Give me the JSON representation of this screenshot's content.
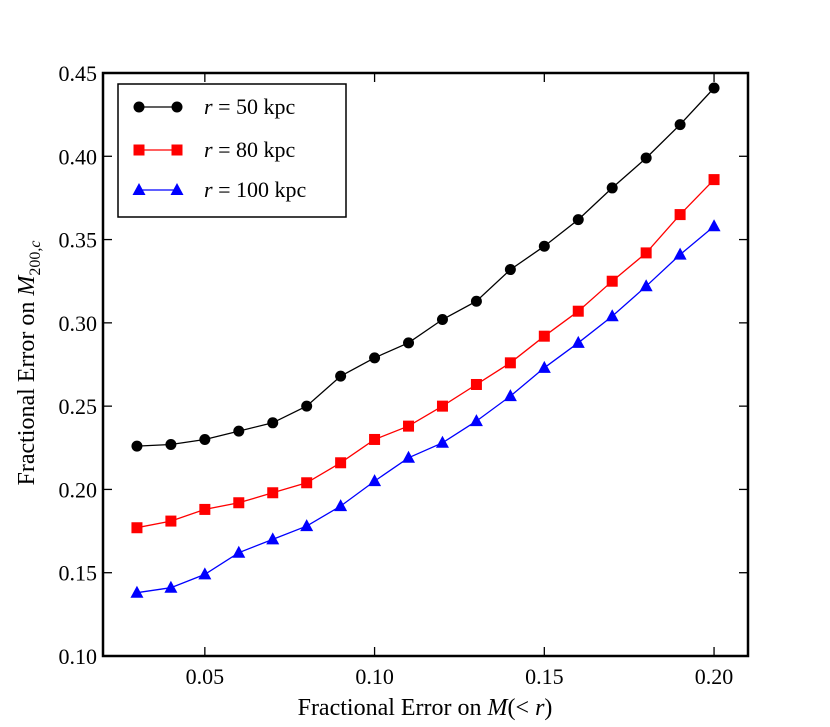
{
  "chart_data": {
    "type": "line",
    "title": "",
    "xlabel": "Fractional Error on M(< r)",
    "ylabel": "Fractional Error on M200,c",
    "xlim": [
      0.02,
      0.21
    ],
    "ylim": [
      0.1,
      0.45
    ],
    "xticks": [
      0.05,
      0.1,
      0.15,
      0.2
    ],
    "xtick_labels": [
      "0.05",
      "0.10",
      "0.15",
      "0.20"
    ],
    "yticks": [
      0.1,
      0.15,
      0.2,
      0.25,
      0.3,
      0.35,
      0.4,
      0.45
    ],
    "ytick_labels": [
      "0.10",
      "0.15",
      "0.20",
      "0.25",
      "0.30",
      "0.35",
      "0.40",
      "0.45"
    ],
    "legend_position": "top-left",
    "x": [
      0.03,
      0.04,
      0.05,
      0.06,
      0.07,
      0.08,
      0.09,
      0.1,
      0.11,
      0.12,
      0.13,
      0.14,
      0.15,
      0.16,
      0.17,
      0.18,
      0.19,
      0.2
    ],
    "series": [
      {
        "name": "r = 50 kpc",
        "label_var": "r",
        "label_rest": " = 50 kpc",
        "color": "#000000",
        "marker": "circle",
        "values": [
          0.226,
          0.227,
          0.23,
          0.235,
          0.24,
          0.25,
          0.268,
          0.279,
          0.288,
          0.302,
          0.313,
          0.332,
          0.346,
          0.362,
          0.381,
          0.399,
          0.419,
          0.441
        ]
      },
      {
        "name": "r = 80 kpc",
        "label_var": "r",
        "label_rest": " = 80 kpc",
        "color": "#ff0000",
        "marker": "square",
        "values": [
          0.177,
          0.181,
          0.188,
          0.192,
          0.198,
          0.204,
          0.216,
          0.23,
          0.238,
          0.25,
          0.263,
          0.276,
          0.292,
          0.307,
          0.325,
          0.342,
          0.365,
          0.386
        ]
      },
      {
        "name": "r = 100 kpc",
        "label_var": "r",
        "label_rest": " = 100 kpc",
        "color": "#0000ff",
        "marker": "triangle",
        "values": [
          0.138,
          0.141,
          0.149,
          0.162,
          0.17,
          0.178,
          0.19,
          0.205,
          0.219,
          0.228,
          0.241,
          0.256,
          0.273,
          0.288,
          0.304,
          0.322,
          0.341,
          0.358
        ]
      }
    ]
  }
}
